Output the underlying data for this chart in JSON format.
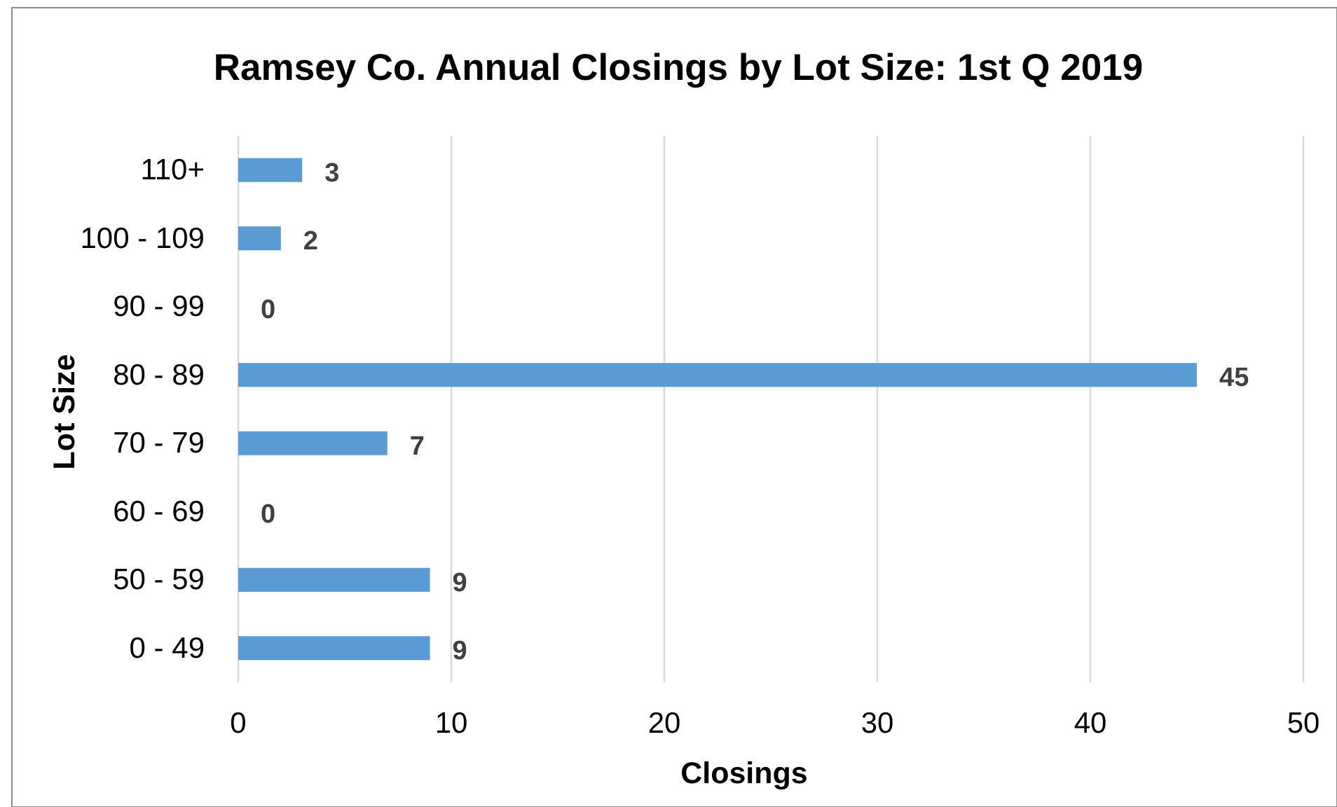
{
  "chart_data": {
    "type": "bar",
    "orientation": "horizontal",
    "title": "Ramsey Co. Annual Closings by Lot Size: 1st Q 2019",
    "xlabel": "Closings",
    "ylabel": "Lot Size",
    "categories": [
      "110+",
      "100 - 109",
      "90 - 99",
      "80 - 89",
      "70 - 79",
      "60 - 69",
      "50 - 59",
      "0 - 49"
    ],
    "values": [
      3,
      2,
      0,
      45,
      7,
      0,
      9,
      9
    ],
    "color": "#5b9bd5",
    "data_labels": true,
    "xlim": [
      0,
      50
    ],
    "xticks": [
      0,
      10,
      20,
      30,
      40,
      50
    ],
    "grid": "x"
  }
}
